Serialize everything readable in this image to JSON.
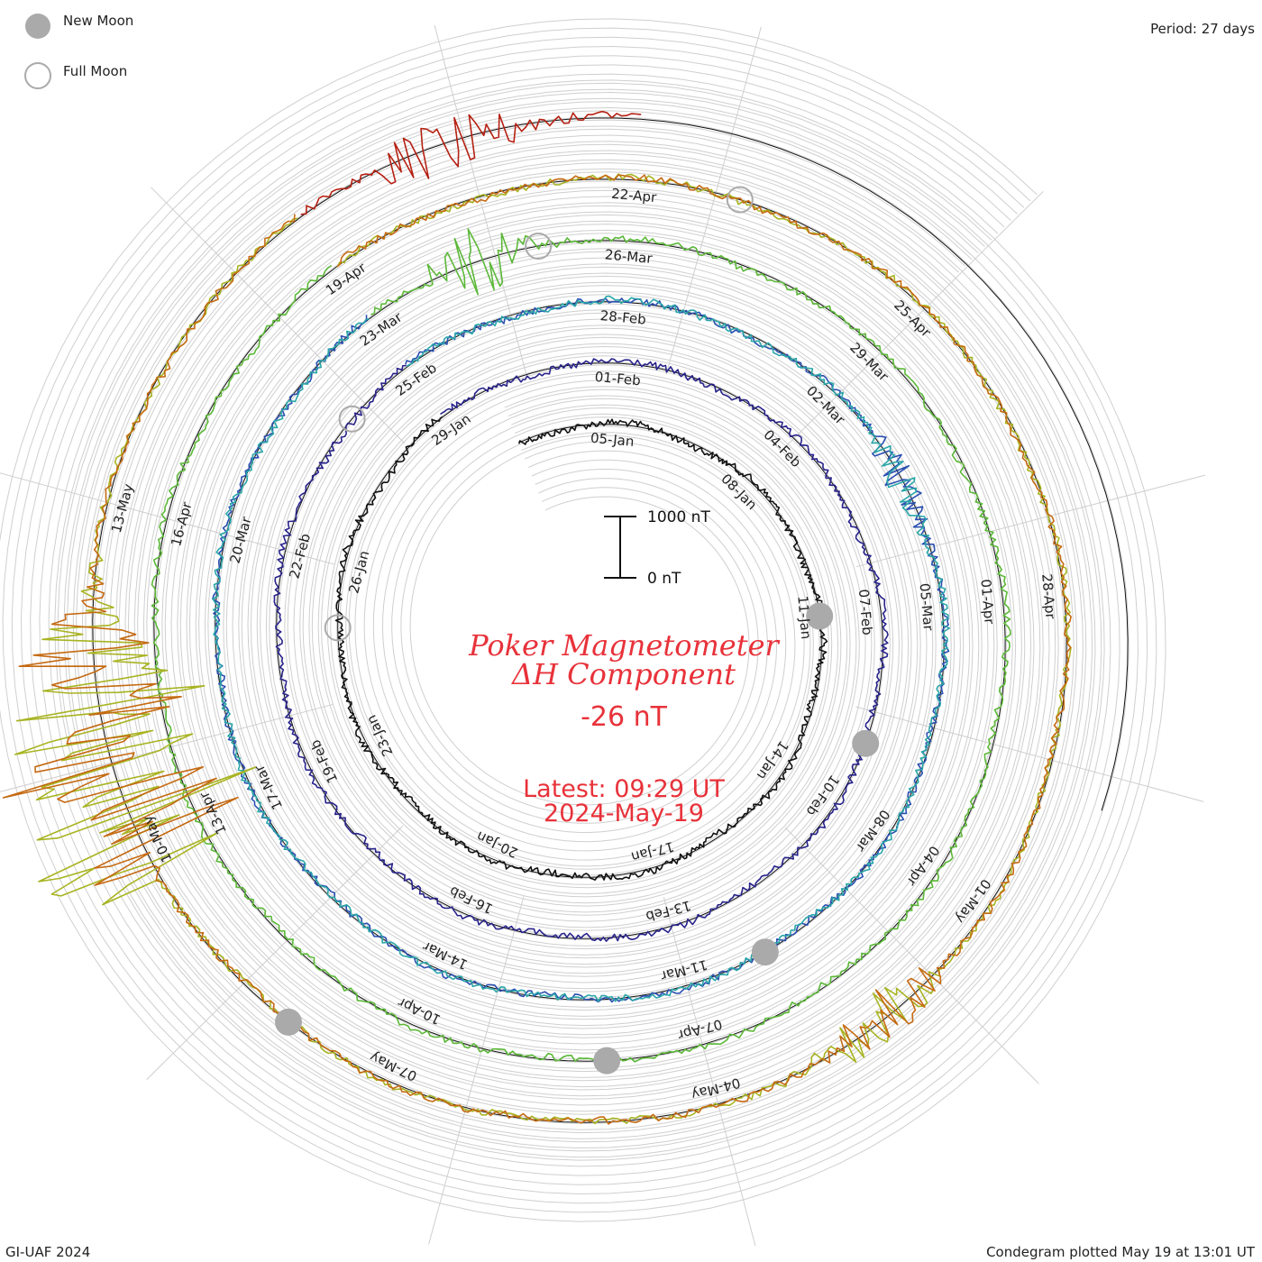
{
  "chart_data": {
    "type": "line",
    "plot_kind": "condegram (spiral plot, one 27-day revolution per turn)",
    "title": "Poker Magnetometer",
    "subtitle": "ΔH Component",
    "current_value": "-26 nT",
    "latest_time": "Latest: 09:29 UT",
    "latest_date": "2024-May-19",
    "period_label": "Period: 27 days",
    "credit": "GI-UAF 2024",
    "plotted_label": "Condegram plotted May 19 at 13:01 UT",
    "scale_bar": {
      "top_label": "1000 nT",
      "bottom_label": "0 nT",
      "top_value_nT": 1000,
      "bottom_value_nT": 0
    },
    "legend": [
      {
        "label": "New Moon",
        "symbol": "filled-gray-circle"
      },
      {
        "label": "Full Moon",
        "symbol": "hollow-gray-circle"
      }
    ],
    "period_days": 27,
    "start_date": "2024-01-03",
    "end_date": "2024-05-19",
    "date_labels": [
      "05-Jan",
      "08-Jan",
      "11-Jan",
      "14-Jan",
      "17-Jan",
      "20-Jan",
      "23-Jan",
      "26-Jan",
      "29-Jan",
      "01-Feb",
      "04-Feb",
      "07-Feb",
      "10-Feb",
      "13-Feb",
      "16-Feb",
      "19-Feb",
      "22-Feb",
      "25-Feb",
      "28-Feb",
      "02-Mar",
      "05-Mar",
      "08-Mar",
      "11-Mar",
      "14-Mar",
      "17-Mar",
      "20-Mar",
      "23-Mar",
      "26-Mar",
      "29-Mar",
      "01-Apr",
      "04-Apr",
      "07-Apr",
      "10-Apr",
      "13-Apr",
      "16-Apr",
      "19-Apr",
      "22-Apr",
      "25-Apr",
      "28-Apr",
      "01-May",
      "04-May",
      "07-May",
      "10-May",
      "13-May"
    ],
    "series": [
      {
        "color": "#111111",
        "from": "2024-01-03",
        "to": "2024-01-29"
      },
      {
        "color": "#28238a",
        "from": "2024-01-29",
        "to": "2024-02-25"
      },
      {
        "color": "#2a4fb0",
        "from": "2024-02-25",
        "to": "2024-03-23"
      },
      {
        "color": "#2ba6a8",
        "from": "2024-02-25",
        "to": "2024-03-23"
      },
      {
        "color": "#5cb838",
        "from": "2024-03-23",
        "to": "2024-04-19"
      },
      {
        "color": "#a8b422",
        "from": "2024-04-19",
        "to": "2024-05-16"
      },
      {
        "color": "#c56a12",
        "from": "2024-04-19",
        "to": "2024-05-16"
      },
      {
        "color": "#b52012",
        "from": "2024-05-16",
        "to": "2024-05-19"
      }
    ],
    "events": [
      {
        "type": "storm",
        "date": "2024-05-10",
        "peak_deviation_nT": 2200
      },
      {
        "type": "storm",
        "date": "2024-05-11",
        "peak_deviation_nT": 1600
      },
      {
        "type": "storm",
        "date": "2024-05-17",
        "peak_deviation_nT": 500
      },
      {
        "type": "disturbance",
        "date": "2024-03-24",
        "peak_deviation_nT": 700
      },
      {
        "type": "disturbance",
        "date": "2024-05-02",
        "peak_deviation_nT": 550
      },
      {
        "type": "disturbance",
        "date": "2024-03-03",
        "peak_deviation_nT": 350
      }
    ],
    "moon_phases": [
      {
        "phase": "New Moon",
        "date": "2024-01-11"
      },
      {
        "phase": "Full Moon",
        "date": "2024-01-25"
      },
      {
        "phase": "New Moon",
        "date": "2024-02-09"
      },
      {
        "phase": "Full Moon",
        "date": "2024-02-24"
      },
      {
        "phase": "New Moon",
        "date": "2024-03-10"
      },
      {
        "phase": "Full Moon",
        "date": "2024-03-25"
      },
      {
        "phase": "New Moon",
        "date": "2024-04-08"
      },
      {
        "phase": "Full Moon",
        "date": "2024-04-23"
      },
      {
        "phase": "New Moon",
        "date": "2024-05-08"
      }
    ],
    "grid": true
  }
}
